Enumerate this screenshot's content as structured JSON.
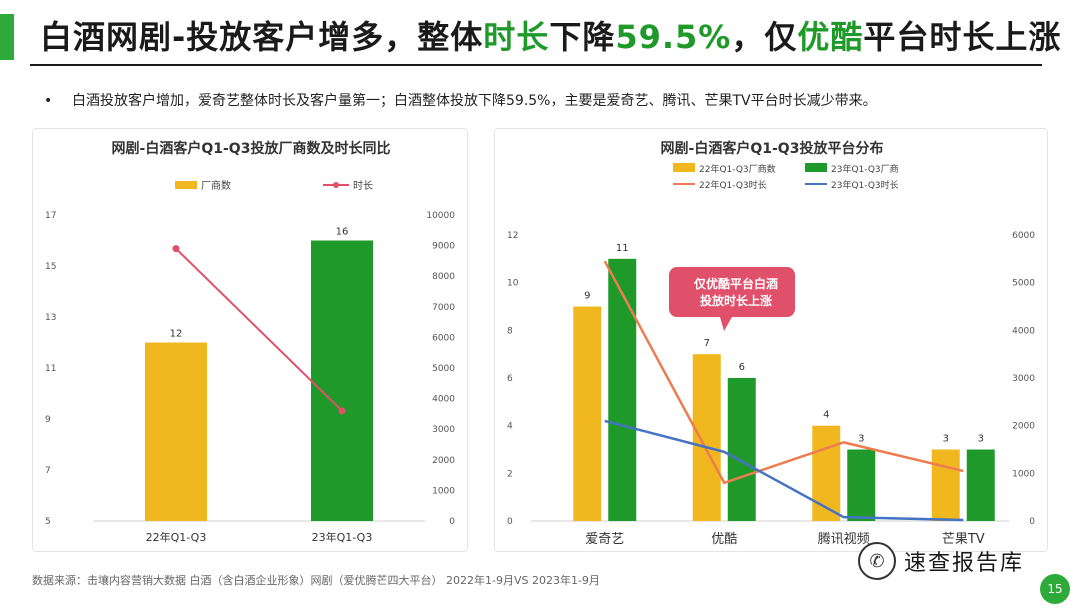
{
  "title": {
    "part1": "白酒网剧-投放客户增多，整体",
    "hl1": "时长",
    "part2": "下降",
    "hl2": "59.5%",
    "part3": "，仅",
    "hl3": "优酷",
    "part4": "平台时长上涨"
  },
  "bullet": "白酒投放客户增加，爱奇艺整体时长及客户量第一；白酒整体投放下降59.5%，主要是爱奇艺、腾讯、芒果TV平台时长减少带来。",
  "callout": {
    "line1": "仅优酷平台白酒",
    "line2": "投放时长上涨"
  },
  "footer": "数据来源：击壤内容营销大数据    白酒（含白酒企业形象）网剧（爱优腾芒四大平台） 2022年1-9月VS 2023年1-9月",
  "brand": {
    "icon": "wechat-icon",
    "label": "速查报告库"
  },
  "page_number": "15",
  "colors": {
    "green": "#1f9a2a",
    "yellow": "#f0b81e",
    "line_red": "#e0506a",
    "line_orange": "#ed7d50",
    "line_blue": "#4472c4",
    "callout": "#e0506a"
  },
  "chart_data": [
    {
      "type": "bar",
      "title": "网剧-白酒客户Q1-Q3投放厂商数及时长同比",
      "categories": [
        "22年Q1-Q3",
        "23年Q1-Q3"
      ],
      "series": [
        {
          "name": "厂商数",
          "type": "bar",
          "axis": "left",
          "values": [
            12,
            16
          ]
        },
        {
          "name": "时长",
          "type": "line",
          "axis": "right",
          "values": [
            8900,
            3600
          ]
        }
      ],
      "ylim_left": [
        5,
        17
      ],
      "yticks_left": [
        5,
        7,
        9,
        11,
        13,
        15,
        17
      ],
      "ylim_right": [
        0,
        10000
      ],
      "yticks_right": [
        0,
        1000,
        2000,
        3000,
        4000,
        5000,
        6000,
        7000,
        8000,
        9000,
        10000
      ],
      "legend": "top"
    },
    {
      "type": "bar",
      "title": "网剧-白酒客户Q1-Q3投放平台分布",
      "categories": [
        "爱奇艺",
        "优酷",
        "腾讯视频",
        "芒果TV"
      ],
      "series": [
        {
          "name": "22年Q1-Q3厂商数",
          "type": "bar",
          "axis": "left",
          "values": [
            9,
            7,
            4,
            3
          ]
        },
        {
          "name": "23年Q1-Q3厂商",
          "type": "bar",
          "axis": "left",
          "values": [
            11,
            6,
            3,
            3
          ]
        },
        {
          "name": "22年Q1-Q3时长",
          "type": "line",
          "axis": "right",
          "values": [
            5450,
            800,
            1650,
            1050
          ]
        },
        {
          "name": "23年Q1-Q3时长",
          "type": "line",
          "axis": "right",
          "values": [
            2100,
            1450,
            80,
            20
          ]
        }
      ],
      "ylim_left": [
        0,
        12
      ],
      "yticks_left": [
        0,
        2,
        4,
        6,
        8,
        10,
        12
      ],
      "ylim_right": [
        0,
        6000
      ],
      "yticks_right": [
        0,
        1000,
        2000,
        3000,
        4000,
        5000,
        6000
      ],
      "legend": "top"
    }
  ]
}
